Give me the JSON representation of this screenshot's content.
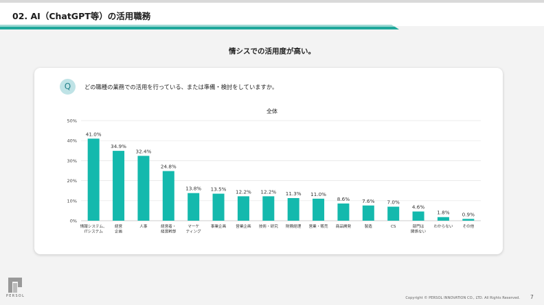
{
  "header": {
    "title": "02. AI（ChatGPT等）の活用職務"
  },
  "lead_text": "情シスでの活用度が高い。",
  "question": {
    "badge": "Q",
    "text": "どの職種の業務での活用を行っている、または準備・検討をしていますか。"
  },
  "footer": {
    "logo_text": "PERSOL",
    "copyright": "Copyright © PERSOL INNOVATION CO., LTD. All Rights Reserved.",
    "page_number": "7"
  },
  "colors": {
    "bar": "#14b9ad",
    "accent": "#1fa89b",
    "grid": "#e4e4e4"
  },
  "chart_data": {
    "type": "bar",
    "title": "全体",
    "categories": [
      [
        "情報システム、",
        "ITシステム"
      ],
      [
        "経営",
        "企画"
      ],
      [
        "人事"
      ],
      [
        "経営者・",
        "経営幹部"
      ],
      [
        "マーケ",
        "ティング"
      ],
      [
        "事業企画"
      ],
      [
        "営業企画"
      ],
      [
        "技術・研究"
      ],
      [
        "財務経理"
      ],
      [
        "営業・販売"
      ],
      [
        "商品開発"
      ],
      [
        "製造"
      ],
      [
        "CS"
      ],
      [
        "部門は",
        "関係ない"
      ],
      [
        "わからない"
      ],
      [
        "その他"
      ]
    ],
    "values": [
      41.0,
      34.9,
      32.4,
      24.8,
      13.8,
      13.5,
      12.2,
      12.2,
      11.3,
      11.0,
      8.6,
      7.6,
      7.0,
      4.6,
      1.8,
      0.9
    ],
    "value_labels": [
      "41.0%",
      "34.9%",
      "32.4%",
      "24.8%",
      "13.8%",
      "13.5%",
      "12.2%",
      "12.2%",
      "11.3%",
      "11.0%",
      "8.6%",
      "7.6%",
      "7.0%",
      "4.6%",
      "1.8%",
      "0.9%"
    ],
    "yticks": [
      0,
      10,
      20,
      30,
      40,
      50
    ],
    "ytick_labels": [
      "0%",
      "10%",
      "20%",
      "30%",
      "40%",
      "50%"
    ],
    "ylim": [
      0,
      50
    ],
    "grid": true,
    "xlabel": "",
    "ylabel": ""
  }
}
